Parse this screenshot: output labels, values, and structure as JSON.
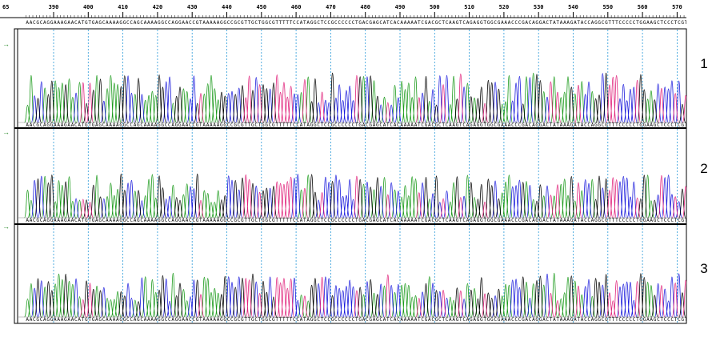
{
  "ruler": {
    "label": "65",
    "ticks": [
      390,
      400,
      410,
      420,
      430,
      440,
      450,
      460,
      470,
      480,
      490,
      500,
      510,
      520,
      530,
      540,
      550,
      560,
      570
    ]
  },
  "reference": "AACGCAGGAAAGAACATGTGAGCAAAAGGCCAGCAAAAGGCCAGGAACCGTAAAAAGGCCGCGTTGCTGGCGTTTTTCCATAGGCTCCGCCCCCCTGACGAGCATCACAAAAATCGACGCTCAAGTCAGAGGTGGCGAAACCCGACAGGACTATAAAGATACCAGGCGTTTCCCCCTGGAAGCTCCCTCGTGCGCTC",
  "lanes": [
    {
      "label": "1",
      "sequence": "AACGCAGGAAAGAACATGTGAGCAAAAGGCCAGCAAAAGGCCAGGAACCGTAAAAAGGCCGCGTTGCTGGCGTTTTTCCATAGGCTCCGCCCCCCTGACGAGCATCACAAAAATCGACGCTCAAGTCAGAGGTGGCGAAACCCGACAGGACTATAAAGATACCAGGCGTTTCCCCCTGGAAGCTCCCTCGTGCGCTC"
    },
    {
      "label": "2",
      "sequence": "AACGCAGGAAAGAACATGTGAGCAAAAGGCCAGCAAAAGGCCAGGAACCGTAAAAAGGCCGCGTTGCTGGCGTTTTTCCATAGGCTCCGCCCCCCTGACGAGCATCACAAAAATCGACGCTCAAGTCAGAGGTGGCGAAACCCGACAGGACTATAAAGATACCAGGCGTTTCCCCCTGGAAGCTCCCTCGTGCGCTC"
    },
    {
      "label": "3",
      "sequence": "AACGCAGGAAAGAACATGTGAGCAAAAGGCCAGCAAAAGGCCAGGAACCGTAAAAAGGCCGCGTTGCTGGCGTTTTTCCATAGGCTCCGCCCCCCTGACGAGCATCACAAAAATCGACGCTCAAGTCAGAGGTGGCGAAACCCGACAGGACTATAAAGATACCAGGCGTTTCCCCCTGGAAGCTCCCTCGTGCGCTC"
    }
  ]
}
